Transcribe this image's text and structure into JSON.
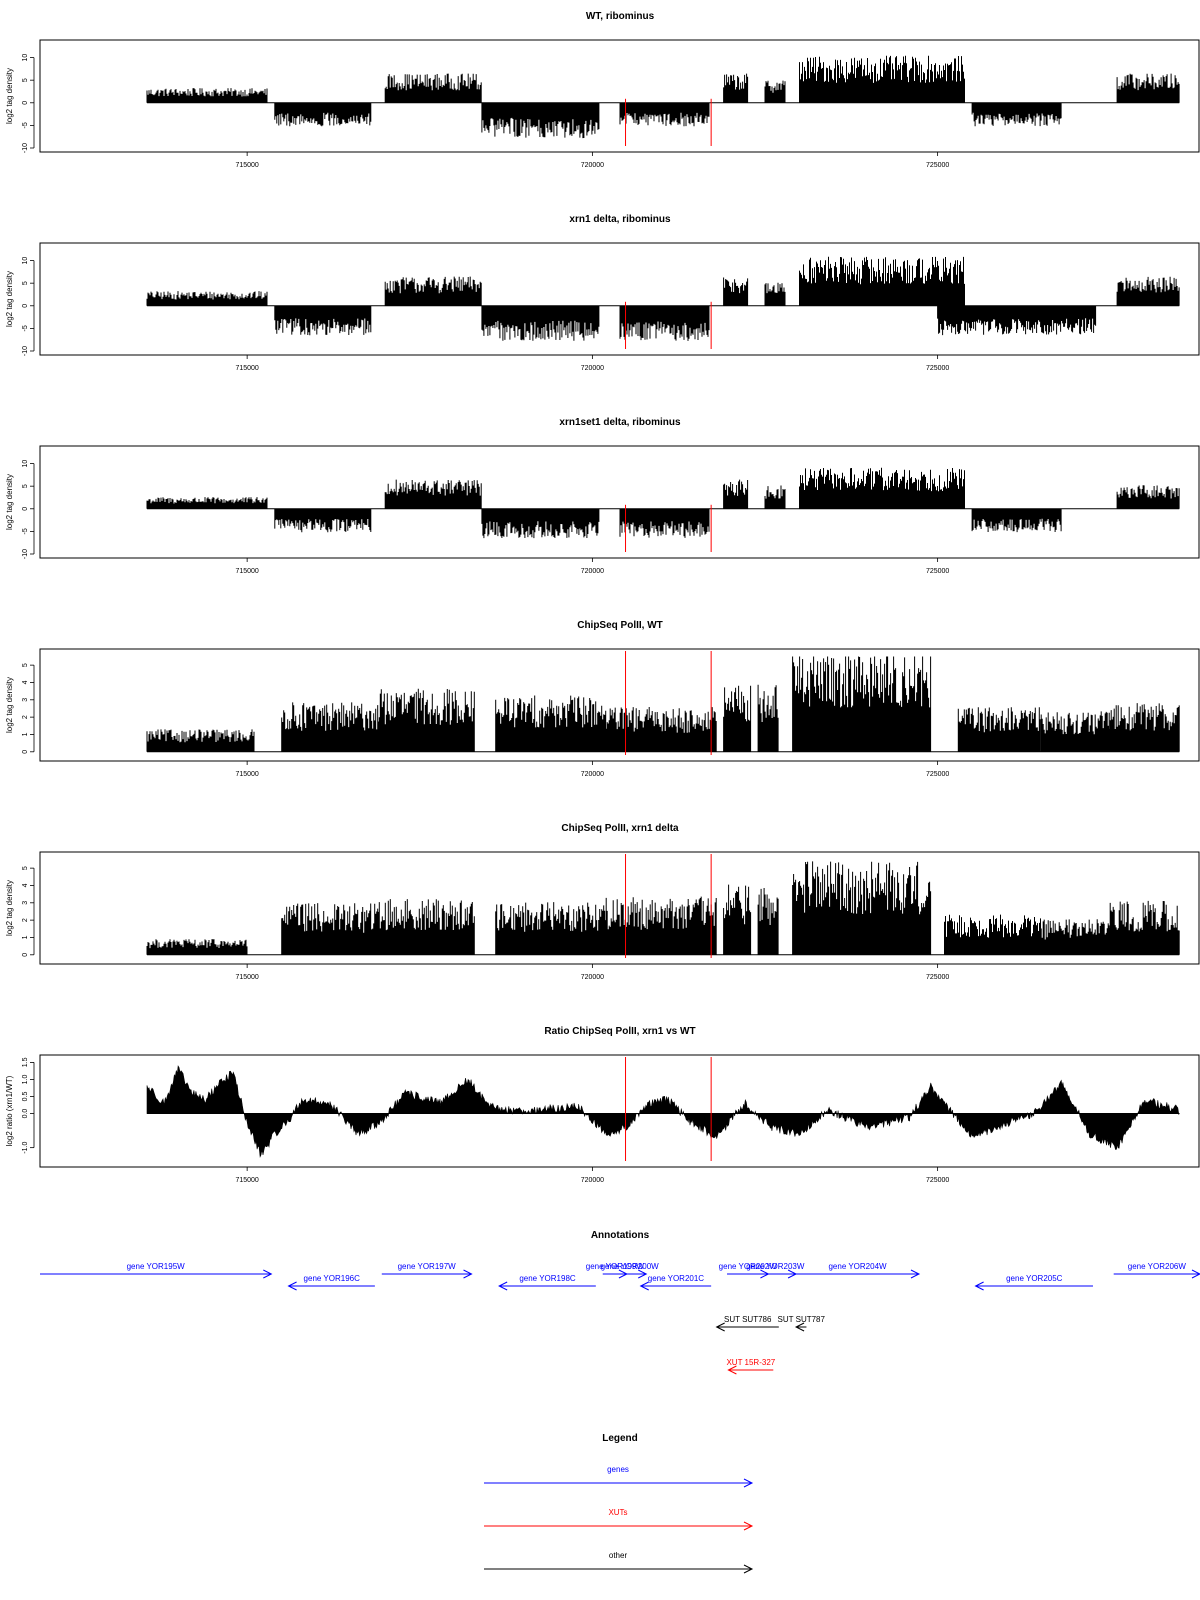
{
  "colors": {
    "axis": "#000000",
    "trace": "#000000",
    "marker": "#ff0000",
    "gene": "#0000ff",
    "xut": "#ff0000",
    "other": "#000000"
  },
  "chart_data": [
    {
      "type": "bar",
      "title": "WT, ribominus",
      "ylabel": "log2 tag density",
      "xticks": [
        715000,
        720000,
        725000
      ],
      "xlim": [
        712000,
        728800
      ],
      "ylim": [
        -10,
        13
      ],
      "yticks": [
        -10,
        -5,
        0,
        5,
        10
      ],
      "ytick_labels": [
        "-10",
        "-5",
        "0",
        "5",
        "10"
      ],
      "markers": [
        720480,
        721720
      ],
      "segments": [
        {
          "start": 713550,
          "end": 715300,
          "value": 2.5
        },
        {
          "start": 715400,
          "end": 716800,
          "value": -4
        },
        {
          "start": 717000,
          "end": 718400,
          "value": 5
        },
        {
          "start": 718400,
          "end": 720100,
          "value": -6
        },
        {
          "start": 720400,
          "end": 721700,
          "value": -4
        },
        {
          "start": 721900,
          "end": 722250,
          "value": 5
        },
        {
          "start": 722500,
          "end": 722800,
          "value": 4
        },
        {
          "start": 723000,
          "end": 725400,
          "value": 8
        },
        {
          "start": 725500,
          "end": 726800,
          "value": -4
        },
        {
          "start": 727600,
          "end": 728500,
          "value": 5
        }
      ]
    },
    {
      "type": "bar",
      "title": "xrn1 delta, ribominus",
      "ylabel": "log2 tag density",
      "xticks": [
        715000,
        720000,
        725000
      ],
      "xlim": [
        712000,
        728800
      ],
      "ylim": [
        -10,
        13
      ],
      "yticks": [
        -10,
        -5,
        0,
        5,
        10
      ],
      "ytick_labels": [
        "-10",
        "-5",
        "0",
        "5",
        "10"
      ],
      "markers": [
        720480,
        721720
      ],
      "segments": [
        {
          "start": 713550,
          "end": 715300,
          "value": 2.5
        },
        {
          "start": 715400,
          "end": 716800,
          "value": -5
        },
        {
          "start": 717000,
          "end": 718400,
          "value": 5
        },
        {
          "start": 718400,
          "end": 720100,
          "value": -6
        },
        {
          "start": 720400,
          "end": 721700,
          "value": -6
        },
        {
          "start": 721900,
          "end": 722250,
          "value": 5
        },
        {
          "start": 722500,
          "end": 722800,
          "value": 4
        },
        {
          "start": 723000,
          "end": 725400,
          "value": 8.5
        },
        {
          "start": 725000,
          "end": 727300,
          "value": -5
        },
        {
          "start": 727600,
          "end": 728500,
          "value": 5
        }
      ]
    },
    {
      "type": "bar",
      "title": "xrn1set1 delta, ribominus",
      "ylabel": "log2 tag density",
      "xticks": [
        715000,
        720000,
        725000
      ],
      "xlim": [
        712000,
        728800
      ],
      "ylim": [
        -10,
        13
      ],
      "yticks": [
        -10,
        -5,
        0,
        5,
        10
      ],
      "ytick_labels": [
        "-10",
        "-5",
        "0",
        "5",
        "10"
      ],
      "markers": [
        720480,
        721720
      ],
      "segments": [
        {
          "start": 713550,
          "end": 715300,
          "value": 2
        },
        {
          "start": 715400,
          "end": 716800,
          "value": -4
        },
        {
          "start": 717000,
          "end": 718400,
          "value": 5
        },
        {
          "start": 718400,
          "end": 720100,
          "value": -5
        },
        {
          "start": 720400,
          "end": 721700,
          "value": -5
        },
        {
          "start": 721900,
          "end": 722250,
          "value": 5
        },
        {
          "start": 722500,
          "end": 722800,
          "value": 4
        },
        {
          "start": 723000,
          "end": 725400,
          "value": 7
        },
        {
          "start": 725500,
          "end": 726800,
          "value": -4
        },
        {
          "start": 727600,
          "end": 728500,
          "value": 4
        }
      ]
    },
    {
      "type": "bar",
      "title": "ChipSeq PolII, WT",
      "ylabel": "log2 tag density",
      "xticks": [
        715000,
        720000,
        725000
      ],
      "xlim": [
        712000,
        728800
      ],
      "ylim": [
        -0.3,
        5.7
      ],
      "yticks": [
        0,
        1,
        2,
        3,
        4,
        5
      ],
      "ytick_labels": [
        "0",
        "1",
        "2",
        "3",
        "4",
        "5"
      ],
      "markers": [
        720480,
        721720
      ],
      "segments": [
        {
          "start": 713550,
          "end": 715100,
          "value": 1
        },
        {
          "start": 715500,
          "end": 716900,
          "value": 2.2
        },
        {
          "start": 716900,
          "end": 718300,
          "value": 2.8
        },
        {
          "start": 718600,
          "end": 720200,
          "value": 2.5
        },
        {
          "start": 720200,
          "end": 721800,
          "value": 2
        },
        {
          "start": 721900,
          "end": 722300,
          "value": 3
        },
        {
          "start": 722400,
          "end": 722700,
          "value": 3
        },
        {
          "start": 722900,
          "end": 724900,
          "value": 4.5
        },
        {
          "start": 725300,
          "end": 726500,
          "value": 2
        },
        {
          "start": 726500,
          "end": 727500,
          "value": 1.8
        },
        {
          "start": 727500,
          "end": 728500,
          "value": 2.2
        }
      ]
    },
    {
      "type": "bar",
      "title": "ChipSeq PolII, xrn1 delta",
      "ylabel": "log2 tag density",
      "xticks": [
        715000,
        720000,
        725000
      ],
      "xlim": [
        712000,
        728800
      ],
      "ylim": [
        -0.3,
        5.7
      ],
      "yticks": [
        0,
        1,
        2,
        3,
        4,
        5
      ],
      "ytick_labels": [
        "0",
        "1",
        "2",
        "3",
        "4",
        "5"
      ],
      "markers": [
        720480,
        721720
      ],
      "segments": [
        {
          "start": 713550,
          "end": 715000,
          "value": 0.7
        },
        {
          "start": 715500,
          "end": 716900,
          "value": 2.3
        },
        {
          "start": 716900,
          "end": 718300,
          "value": 2.5
        },
        {
          "start": 718600,
          "end": 720200,
          "value": 2.4
        },
        {
          "start": 720200,
          "end": 721800,
          "value": 2.6
        },
        {
          "start": 721900,
          "end": 722300,
          "value": 3.2
        },
        {
          "start": 722400,
          "end": 722700,
          "value": 3
        },
        {
          "start": 722900,
          "end": 724900,
          "value": 4.2
        },
        {
          "start": 725100,
          "end": 726500,
          "value": 1.8
        },
        {
          "start": 726500,
          "end": 727500,
          "value": 1.6
        },
        {
          "start": 727500,
          "end": 728500,
          "value": 2.4
        }
      ]
    },
    {
      "type": "area",
      "title": "Ratio ChipSeq PolII, xrn1 vs WT",
      "ylabel": "log2 ratio (xrn1/WT)",
      "xticks": [
        715000,
        720000,
        725000
      ],
      "xlim": [
        712000,
        728800
      ],
      "ylim": [
        -1.45,
        1.6
      ],
      "yticks": [
        -1.0,
        0.0,
        0.5,
        1.0,
        1.5
      ],
      "ytick_labels": [
        "-1.0",
        "0.0",
        "0.5",
        "1.0",
        "1.5"
      ],
      "markers": [
        720480,
        721720
      ],
      "x": [
        713550,
        713800,
        714000,
        714200,
        714400,
        714600,
        714800,
        715000,
        715200,
        715400,
        715600,
        715800,
        716200,
        716600,
        716900,
        717300,
        717800,
        718200,
        718500,
        718800,
        719200,
        719800,
        720200,
        720500,
        720800,
        721100,
        721400,
        721800,
        722200,
        722600,
        723000,
        723400,
        724000,
        724600,
        724900,
        725100,
        725500,
        726000,
        726400,
        726800,
        727200,
        727600,
        728000,
        728500
      ],
      "y": [
        0.8,
        0.3,
        1.3,
        0.6,
        0.4,
        0.9,
        1.2,
        -0.3,
        -1.2,
        -0.6,
        -0.2,
        0.4,
        0.3,
        -0.6,
        -0.3,
        0.6,
        0.3,
        1.0,
        0.2,
        0.1,
        0.1,
        0.2,
        -0.6,
        -0.4,
        0.3,
        0.4,
        -0.2,
        -0.7,
        0.3,
        -0.4,
        -0.6,
        0.1,
        -0.4,
        -0.1,
        0.8,
        0.3,
        -0.7,
        -0.3,
        0.0,
        0.9,
        -0.6,
        -1.0,
        0.4,
        0.1
      ]
    }
  ],
  "annotations": {
    "title": "Annotations",
    "items": [
      {
        "label": "gene YOR195W",
        "start": 712000,
        "end": 715350,
        "strand": "+",
        "kind": "gene",
        "row": 0
      },
      {
        "label": "gene YOR196C",
        "start": 715600,
        "end": 716850,
        "strand": "-",
        "kind": "gene",
        "row": 1
      },
      {
        "label": "gene YOR197W",
        "start": 716950,
        "end": 718250,
        "strand": "+",
        "kind": "gene",
        "row": 0
      },
      {
        "label": "gene YOR198C",
        "start": 718650,
        "end": 720050,
        "strand": "-",
        "kind": "gene",
        "row": 1
      },
      {
        "label": "gene YOR199W",
        "start": 720150,
        "end": 720500,
        "strand": "+",
        "kind": "gene",
        "row": 0
      },
      {
        "label": "gene YOR200W",
        "start": 720300,
        "end": 720780,
        "strand": "+",
        "kind": "gene",
        "row": 0
      },
      {
        "label": "gene YOR201C",
        "start": 720700,
        "end": 721720,
        "strand": "-",
        "kind": "gene",
        "row": 1
      },
      {
        "label": "gene YOR202W",
        "start": 721950,
        "end": 722550,
        "strand": "+",
        "kind": "gene",
        "row": 0
      },
      {
        "label": "gene YOR203W",
        "start": 722350,
        "end": 722950,
        "strand": "+",
        "kind": "gene",
        "row": 0
      },
      {
        "label": "gene YOR204W",
        "start": 722950,
        "end": 724730,
        "strand": "+",
        "kind": "gene",
        "row": 0
      },
      {
        "label": "gene YOR205C",
        "start": 725550,
        "end": 727250,
        "strand": "-",
        "kind": "gene",
        "row": 1
      },
      {
        "label": "gene YOR206W",
        "start": 727550,
        "end": 728800,
        "strand": "+",
        "kind": "gene",
        "row": 0
      },
      {
        "label": "SUT SUT786",
        "start": 721800,
        "end": 722700,
        "strand": "-",
        "kind": "other",
        "row": 2
      },
      {
        "label": "SUT SUT787",
        "start": 722950,
        "end": 723100,
        "strand": "-",
        "kind": "other",
        "row": 2
      },
      {
        "label": "XUT 15R-327",
        "start": 721970,
        "end": 722620,
        "strand": "-",
        "kind": "xut",
        "row": 3
      }
    ]
  },
  "legend": {
    "title": "Legend",
    "items": [
      {
        "label": "genes",
        "kind": "gene"
      },
      {
        "label": "XUTs",
        "kind": "xut"
      },
      {
        "label": "other",
        "kind": "other"
      }
    ]
  }
}
